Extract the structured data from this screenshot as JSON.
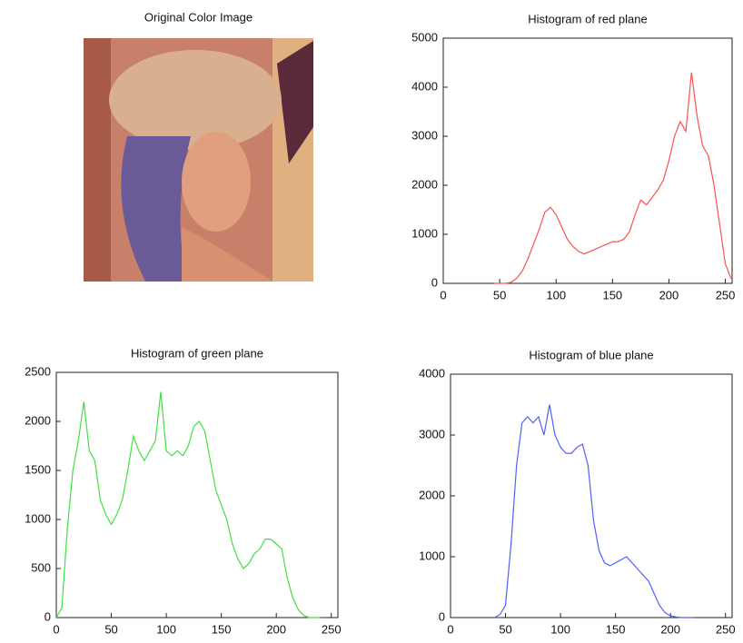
{
  "chart_data": [
    {
      "type": "image",
      "title": "Original Color Image"
    },
    {
      "type": "line",
      "title": "Histogram of red plane",
      "x": [
        45,
        50,
        55,
        60,
        65,
        70,
        75,
        80,
        85,
        90,
        95,
        100,
        105,
        110,
        115,
        120,
        125,
        130,
        135,
        140,
        145,
        150,
        155,
        160,
        165,
        170,
        175,
        180,
        185,
        190,
        195,
        200,
        205,
        210,
        215,
        220,
        225,
        230,
        235,
        240,
        245,
        250,
        255
      ],
      "series": [
        {
          "color": "#ff5050",
          "values": [
            0,
            0,
            0,
            20,
            100,
            250,
            500,
            800,
            1100,
            1450,
            1550,
            1400,
            1150,
            900,
            750,
            650,
            600,
            650,
            700,
            750,
            800,
            850,
            850,
            900,
            1050,
            1400,
            1700,
            1600,
            1750,
            1900,
            2100,
            2500,
            3000,
            3300,
            3100,
            4300,
            3400,
            2800,
            2600,
            2000,
            1200,
            400,
            100
          ]
        }
      ],
      "xlim": [
        0,
        256
      ],
      "ylim": [
        0,
        5000
      ],
      "xticks": [
        0,
        50,
        100,
        150,
        200,
        250
      ],
      "yticks": [
        0,
        1000,
        2000,
        3000,
        4000,
        5000
      ]
    },
    {
      "type": "line",
      "title": "Histogram of green plane",
      "x": [
        0,
        5,
        10,
        15,
        20,
        25,
        30,
        35,
        40,
        45,
        50,
        55,
        60,
        65,
        70,
        75,
        80,
        85,
        90,
        95,
        100,
        105,
        110,
        115,
        120,
        125,
        130,
        135,
        140,
        145,
        150,
        155,
        160,
        165,
        170,
        175,
        180,
        185,
        190,
        195,
        200,
        205,
        210,
        215,
        220,
        225,
        230,
        235,
        240
      ],
      "series": [
        {
          "color": "#40e040",
          "values": [
            0,
            100,
            900,
            1500,
            1800,
            2200,
            1700,
            1600,
            1200,
            1050,
            950,
            1050,
            1200,
            1500,
            1850,
            1700,
            1600,
            1700,
            1800,
            2300,
            1700,
            1650,
            1700,
            1650,
            1750,
            1950,
            2000,
            1900,
            1600,
            1300,
            1150,
            1000,
            750,
            600,
            500,
            550,
            650,
            700,
            800,
            800,
            750,
            700,
            400,
            200,
            80,
            20,
            0,
            0,
            0
          ]
        }
      ],
      "xlim": [
        0,
        256
      ],
      "ylim": [
        0,
        2500
      ],
      "xticks": [
        0,
        50,
        100,
        150,
        200,
        250
      ],
      "yticks": [
        0,
        500,
        1000,
        1500,
        2000,
        2500
      ]
    },
    {
      "type": "line",
      "title": "Histogram of blue plane",
      "x": [
        40,
        45,
        50,
        55,
        60,
        65,
        70,
        75,
        80,
        85,
        90,
        95,
        100,
        105,
        110,
        115,
        120,
        125,
        130,
        135,
        140,
        145,
        150,
        155,
        160,
        165,
        170,
        175,
        180,
        185,
        190,
        195,
        200,
        205,
        210,
        215,
        220
      ],
      "series": [
        {
          "color": "#5060ff",
          "values": [
            0,
            50,
            200,
            1200,
            2500,
            3200,
            3300,
            3200,
            3300,
            3000,
            3500,
            3000,
            2800,
            2700,
            2700,
            2800,
            2850,
            2500,
            1600,
            1100,
            900,
            850,
            900,
            950,
            1000,
            900,
            800,
            700,
            600,
            400,
            200,
            80,
            30,
            10,
            0,
            0,
            0
          ]
        }
      ],
      "xlim": [
        0,
        256
      ],
      "ylim": [
        0,
        4000
      ],
      "xticks": [
        0,
        50,
        100,
        150,
        200,
        250
      ],
      "yticks": [
        0,
        1000,
        2000,
        3000,
        4000
      ]
    }
  ]
}
